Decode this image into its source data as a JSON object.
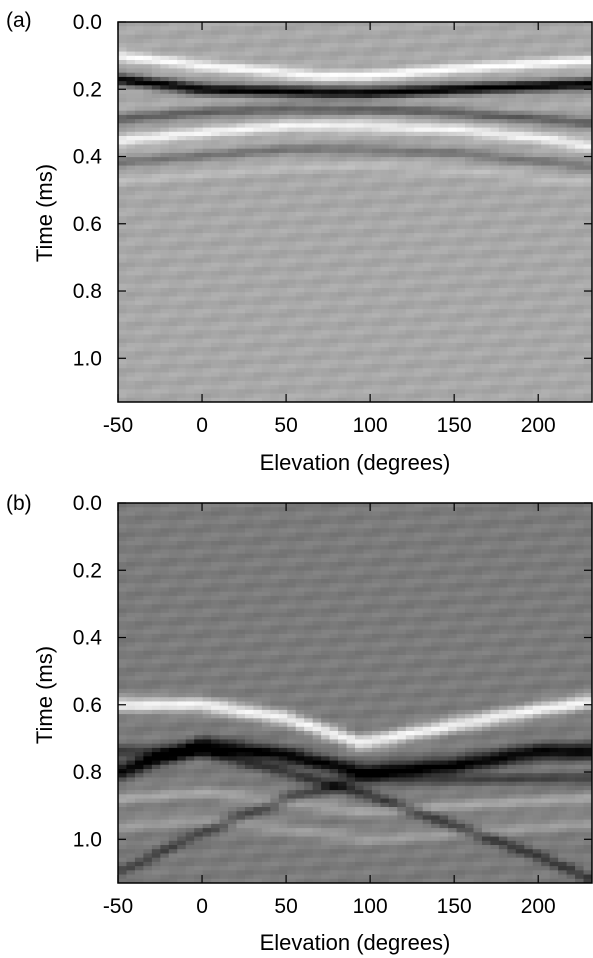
{
  "chart_data": [
    {
      "type": "heatmap",
      "panel_label": "(a)",
      "xlabel": "Elevation (degrees)",
      "ylabel": "Time (ms)",
      "xlim": [
        -50,
        232
      ],
      "ylim": [
        0.0,
        1.13
      ],
      "y_inverted": true,
      "xticks": [
        -50,
        0,
        50,
        100,
        150,
        200
      ],
      "xtick_labels": [
        "-50",
        "0",
        "50",
        "100",
        "150",
        "200"
      ],
      "yticks": [
        0.0,
        0.2,
        0.4,
        0.6,
        0.8,
        1.0
      ],
      "ytick_labels": [
        "0.0",
        "0.2",
        "0.4",
        "0.6",
        "0.8",
        "1.0"
      ],
      "colormap": "grayscale",
      "background_gray": "#a8a8a8",
      "events": [
        {
          "kind": "bright",
          "curve": [
            [
              -50,
              0.1
            ],
            [
              0,
              0.13
            ],
            [
              70,
              0.16
            ],
            [
              100,
              0.16
            ],
            [
              150,
              0.14
            ],
            [
              232,
              0.115
            ]
          ],
          "strength": 0.95,
          "width": 0.016
        },
        {
          "kind": "dark",
          "curve": [
            [
              -50,
              0.17
            ],
            [
              0,
              0.2
            ],
            [
              70,
              0.21
            ],
            [
              100,
              0.21
            ],
            [
              150,
              0.2
            ],
            [
              232,
              0.185
            ]
          ],
          "strength": 1.0,
          "width": 0.017
        },
        {
          "kind": "bright",
          "curve": [
            [
              -50,
              0.355
            ],
            [
              0,
              0.33
            ],
            [
              50,
              0.31
            ],
            [
              100,
              0.31
            ],
            [
              150,
              0.32
            ],
            [
              200,
              0.345
            ],
            [
              232,
              0.37
            ]
          ],
          "strength": 0.85,
          "width": 0.017
        },
        {
          "kind": "dark",
          "curve": [
            [
              -50,
              0.29
            ],
            [
              0,
              0.27
            ],
            [
              50,
              0.26
            ],
            [
              100,
              0.26
            ],
            [
              150,
              0.27
            ],
            [
              232,
              0.3
            ]
          ],
          "strength": 0.45,
          "width": 0.016
        },
        {
          "kind": "dark",
          "curve": [
            [
              -50,
              0.42
            ],
            [
              0,
              0.4
            ],
            [
              50,
              0.38
            ],
            [
              100,
              0.38
            ],
            [
              150,
              0.39
            ],
            [
              232,
              0.43
            ]
          ],
          "strength": 0.3,
          "width": 0.016
        },
        {
          "kind": "bright",
          "curve": [
            [
              -50,
              0.47
            ],
            [
              0,
              0.45
            ],
            [
              50,
              0.43
            ],
            [
              100,
              0.43
            ],
            [
              150,
              0.44
            ],
            [
              232,
              0.48
            ]
          ],
          "strength": 0.2,
          "width": 0.016
        }
      ]
    },
    {
      "type": "heatmap",
      "panel_label": "(b)",
      "xlabel": "Elevation (degrees)",
      "ylabel": "Time (ms)",
      "xlim": [
        -50,
        232
      ],
      "ylim": [
        0.0,
        1.13
      ],
      "y_inverted": true,
      "xticks": [
        -50,
        0,
        50,
        100,
        150,
        200
      ],
      "xtick_labels": [
        "-50",
        "0",
        "50",
        "100",
        "150",
        "200"
      ],
      "yticks": [
        0.0,
        0.2,
        0.4,
        0.6,
        0.8,
        1.0
      ],
      "ytick_labels": [
        "0.0",
        "0.2",
        "0.4",
        "0.6",
        "0.8",
        "1.0"
      ],
      "colormap": "grayscale",
      "background_gray": "#7b7b7b",
      "events": [
        {
          "kind": "bright",
          "curve": [
            [
              -50,
              0.6
            ],
            [
              0,
              0.6
            ],
            [
              50,
              0.64
            ],
            [
              95,
              0.715
            ],
            [
              150,
              0.66
            ],
            [
              200,
              0.615
            ],
            [
              232,
              0.59
            ]
          ],
          "strength": 0.9,
          "width": 0.022
        },
        {
          "kind": "dark",
          "curve": [
            [
              -50,
              0.8
            ],
            [
              0,
              0.72
            ],
            [
              50,
              0.75
            ],
            [
              95,
              0.8
            ],
            [
              150,
              0.78
            ],
            [
              200,
              0.74
            ],
            [
              232,
              0.74
            ]
          ],
          "strength": 1.0,
          "width": 0.024
        },
        {
          "kind": "dark",
          "curve": [
            [
              0,
              0.74
            ],
            [
              50,
              0.8
            ],
            [
              100,
              0.87
            ],
            [
              150,
              0.96
            ],
            [
              200,
              1.05
            ],
            [
              232,
              1.12
            ]
          ],
          "strength": 0.55,
          "width": 0.018
        },
        {
          "kind": "dark",
          "curve": [
            [
              -50,
              1.1
            ],
            [
              0,
              0.98
            ],
            [
              50,
              0.88
            ],
            [
              95,
              0.82
            ]
          ],
          "strength": 0.45,
          "width": 0.018
        },
        {
          "kind": "bright",
          "curve": [
            [
              -50,
              0.88
            ],
            [
              0,
              0.86
            ],
            [
              50,
              0.89
            ],
            [
              100,
              0.92
            ],
            [
              150,
              0.9
            ],
            [
              232,
              0.88
            ]
          ],
          "strength": 0.3,
          "width": 0.02
        },
        {
          "kind": "bright",
          "curve": [
            [
              -50,
              0.96
            ],
            [
              0,
              0.94
            ],
            [
              50,
              0.97
            ],
            [
              100,
              1.0
            ],
            [
              150,
              0.98
            ],
            [
              232,
              0.95
            ]
          ],
          "strength": 0.25,
          "width": 0.02
        }
      ]
    }
  ]
}
